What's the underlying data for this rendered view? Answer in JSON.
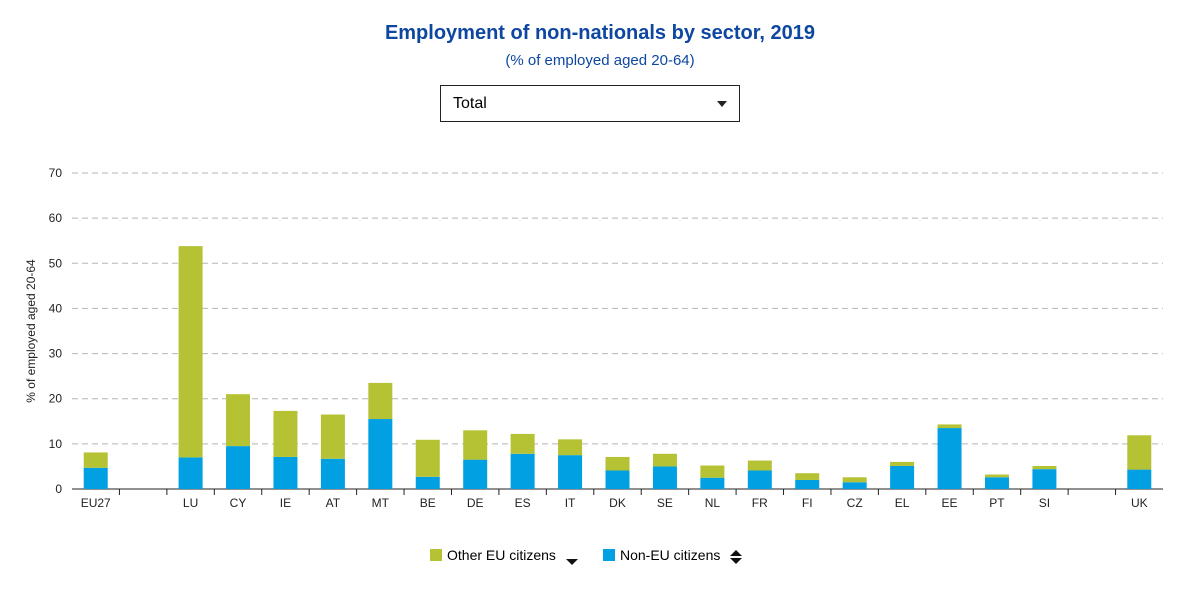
{
  "header": {
    "title": "Employment of non-nationals by sector, 2019",
    "subtitle": "(% of employed aged 20-64)"
  },
  "sector_select": {
    "selected": "Total"
  },
  "legend": {
    "other_eu": "Other EU citizens",
    "non_eu": "Non-EU citizens"
  },
  "chart_data": {
    "type": "bar",
    "stacked": true,
    "categories": [
      "EU27",
      "",
      "LU",
      "CY",
      "IE",
      "AT",
      "MT",
      "BE",
      "DE",
      "ES",
      "IT",
      "DK",
      "SE",
      "NL",
      "FR",
      "FI",
      "CZ",
      "EL",
      "EE",
      "PT",
      "SI",
      "",
      "UK"
    ],
    "series": [
      {
        "name": "Non-EU citizens",
        "color": "#00a0e3",
        "values": [
          4.7,
          null,
          7.0,
          9.5,
          7.1,
          6.7,
          15.5,
          2.7,
          6.5,
          7.8,
          7.5,
          4.1,
          5.0,
          2.5,
          4.1,
          2.0,
          1.5,
          5.1,
          13.5,
          2.6,
          4.4,
          null,
          4.3
        ]
      },
      {
        "name": "Other EU citizens",
        "color": "#b5c234",
        "values": [
          3.4,
          null,
          46.8,
          11.5,
          10.2,
          9.8,
          8.0,
          8.2,
          6.5,
          4.4,
          3.5,
          3.0,
          2.8,
          2.7,
          2.2,
          1.5,
          1.1,
          0.9,
          0.8,
          0.6,
          0.7,
          null,
          7.6
        ]
      }
    ],
    "ylabel": "% of employed aged 20-64",
    "xlabel": "",
    "ylim": [
      0,
      70
    ],
    "yticks": [
      0,
      10,
      20,
      30,
      40,
      50,
      60,
      70
    ],
    "grid": true,
    "legend_position": "bottom-center"
  }
}
